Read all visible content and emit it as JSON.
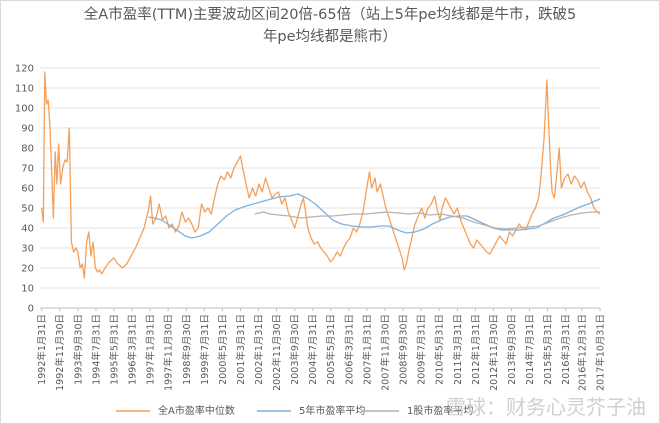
{
  "chart_data": {
    "type": "line",
    "title_line1": "全A市盈率(TTM)主要波动区间20倍-65倍（站上5年pe均线都是牛市，跌破5",
    "title_line2": "年pe均线都是熊市）",
    "ylim": [
      0,
      120
    ],
    "yticks": [
      0,
      10,
      20,
      30,
      40,
      50,
      60,
      70,
      80,
      90,
      100,
      110,
      120
    ],
    "xlim": [
      1992.0,
      2017.83
    ],
    "xticks": [
      {
        "label": "1992年1月31日",
        "x": 1992.08
      },
      {
        "label": "1992年11月30日",
        "x": 1992.91
      },
      {
        "label": "1993年9月30日",
        "x": 1993.75
      },
      {
        "label": "1994年7月31日",
        "x": 1994.58
      },
      {
        "label": "1995年5月31日",
        "x": 1995.41
      },
      {
        "label": "1996年3月31日",
        "x": 1996.25
      },
      {
        "label": "1997年1月31日",
        "x": 1997.08
      },
      {
        "label": "1997年11月30日",
        "x": 1997.91
      },
      {
        "label": "1998年9月30日",
        "x": 1998.75
      },
      {
        "label": "1999年7月31日",
        "x": 1999.58
      },
      {
        "label": "2000年5月31日",
        "x": 2000.41
      },
      {
        "label": "2001年3月31日",
        "x": 2001.25
      },
      {
        "label": "2002年1月31日",
        "x": 2002.08
      },
      {
        "label": "2002年11月30日",
        "x": 2002.91
      },
      {
        "label": "2003年9月30日",
        "x": 2003.75
      },
      {
        "label": "2004年7月31日",
        "x": 2004.58
      },
      {
        "label": "2005年5月31日",
        "x": 2005.41
      },
      {
        "label": "2006年3月31日",
        "x": 2006.25
      },
      {
        "label": "2007年1月31日",
        "x": 2007.08
      },
      {
        "label": "2007年11月30日",
        "x": 2007.91
      },
      {
        "label": "2008年9月30日",
        "x": 2008.75
      },
      {
        "label": "2009年7月31日",
        "x": 2009.58
      },
      {
        "label": "2010年5月31日",
        "x": 2010.41
      },
      {
        "label": "2011年3月31日",
        "x": 2011.25
      },
      {
        "label": "2012年1月31日",
        "x": 2012.08
      },
      {
        "label": "2012年11月30日",
        "x": 2012.91
      },
      {
        "label": "2013年9月30日",
        "x": 2013.75
      },
      {
        "label": "2014年7月31日",
        "x": 2014.58
      },
      {
        "label": "2015年5月31日",
        "x": 2015.41
      },
      {
        "label": "2016年3月31日",
        "x": 2016.25
      },
      {
        "label": "2016年12月31日",
        "x": 2016.99
      },
      {
        "label": "2017年10月31日",
        "x": 2017.83
      }
    ],
    "grid": true,
    "legend_position": "bottom",
    "series": [
      {
        "name": "全A市盈率中位数",
        "color": "#f4a05a",
        "points": [
          [
            1992.08,
            50
          ],
          [
            1992.15,
            43
          ],
          [
            1992.22,
            118
          ],
          [
            1992.3,
            102
          ],
          [
            1992.38,
            104
          ],
          [
            1992.46,
            90
          ],
          [
            1992.55,
            65
          ],
          [
            1992.62,
            45
          ],
          [
            1992.7,
            78
          ],
          [
            1992.78,
            62
          ],
          [
            1992.86,
            82
          ],
          [
            1992.95,
            62
          ],
          [
            1993.05,
            70
          ],
          [
            1993.15,
            74
          ],
          [
            1993.25,
            73
          ],
          [
            1993.35,
            90
          ],
          [
            1993.45,
            33
          ],
          [
            1993.55,
            28
          ],
          [
            1993.65,
            30
          ],
          [
            1993.75,
            28
          ],
          [
            1993.85,
            20
          ],
          [
            1993.95,
            22
          ],
          [
            1994.05,
            15
          ],
          [
            1994.15,
            33
          ],
          [
            1994.25,
            38
          ],
          [
            1994.35,
            26
          ],
          [
            1994.45,
            33
          ],
          [
            1994.55,
            20
          ],
          [
            1994.65,
            18
          ],
          [
            1994.75,
            19
          ],
          [
            1994.85,
            17
          ],
          [
            1995.0,
            20
          ],
          [
            1995.2,
            23
          ],
          [
            1995.4,
            25
          ],
          [
            1995.6,
            22
          ],
          [
            1995.8,
            20
          ],
          [
            1996.0,
            22
          ],
          [
            1996.2,
            26
          ],
          [
            1996.4,
            30
          ],
          [
            1996.6,
            35
          ],
          [
            1996.8,
            40
          ],
          [
            1997.0,
            49
          ],
          [
            1997.1,
            56
          ],
          [
            1997.2,
            42
          ],
          [
            1997.35,
            45
          ],
          [
            1997.5,
            52
          ],
          [
            1997.65,
            44
          ],
          [
            1997.8,
            46
          ],
          [
            1997.95,
            40
          ],
          [
            1998.1,
            42
          ],
          [
            1998.25,
            38
          ],
          [
            1998.4,
            41
          ],
          [
            1998.55,
            48
          ],
          [
            1998.7,
            43
          ],
          [
            1998.85,
            45
          ],
          [
            1999.0,
            42
          ],
          [
            1999.15,
            38
          ],
          [
            1999.3,
            40
          ],
          [
            1999.45,
            52
          ],
          [
            1999.6,
            48
          ],
          [
            1999.75,
            50
          ],
          [
            1999.9,
            47
          ],
          [
            2000.05,
            55
          ],
          [
            2000.2,
            62
          ],
          [
            2000.35,
            66
          ],
          [
            2000.5,
            64
          ],
          [
            2000.65,
            68
          ],
          [
            2000.8,
            65
          ],
          [
            2000.95,
            70
          ],
          [
            2001.1,
            73
          ],
          [
            2001.25,
            76
          ],
          [
            2001.35,
            70
          ],
          [
            2001.5,
            62
          ],
          [
            2001.65,
            55
          ],
          [
            2001.8,
            60
          ],
          [
            2001.95,
            56
          ],
          [
            2002.1,
            62
          ],
          [
            2002.25,
            58
          ],
          [
            2002.4,
            65
          ],
          [
            2002.55,
            60
          ],
          [
            2002.7,
            55
          ],
          [
            2002.85,
            57
          ],
          [
            2003.0,
            58
          ],
          [
            2003.15,
            52
          ],
          [
            2003.3,
            55
          ],
          [
            2003.45,
            48
          ],
          [
            2003.6,
            44
          ],
          [
            2003.75,
            40
          ],
          [
            2003.9,
            46
          ],
          [
            2004.05,
            52
          ],
          [
            2004.15,
            55
          ],
          [
            2004.25,
            48
          ],
          [
            2004.35,
            40
          ],
          [
            2004.5,
            35
          ],
          [
            2004.65,
            32
          ],
          [
            2004.8,
            33
          ],
          [
            2004.95,
            30
          ],
          [
            2005.1,
            28
          ],
          [
            2005.25,
            26
          ],
          [
            2005.4,
            23
          ],
          [
            2005.55,
            25
          ],
          [
            2005.7,
            28
          ],
          [
            2005.85,
            26
          ],
          [
            2006.0,
            30
          ],
          [
            2006.15,
            33
          ],
          [
            2006.3,
            35
          ],
          [
            2006.45,
            40
          ],
          [
            2006.6,
            38
          ],
          [
            2006.75,
            42
          ],
          [
            2006.9,
            48
          ],
          [
            2007.0,
            55
          ],
          [
            2007.1,
            62
          ],
          [
            2007.2,
            68
          ],
          [
            2007.3,
            60
          ],
          [
            2007.45,
            65
          ],
          [
            2007.55,
            58
          ],
          [
            2007.7,
            62
          ],
          [
            2007.85,
            55
          ],
          [
            2007.95,
            50
          ],
          [
            2008.1,
            45
          ],
          [
            2008.25,
            40
          ],
          [
            2008.4,
            35
          ],
          [
            2008.55,
            30
          ],
          [
            2008.7,
            25
          ],
          [
            2008.8,
            19
          ],
          [
            2008.9,
            22
          ],
          [
            2009.0,
            28
          ],
          [
            2009.15,
            35
          ],
          [
            2009.3,
            42
          ],
          [
            2009.45,
            46
          ],
          [
            2009.6,
            50
          ],
          [
            2009.75,
            45
          ],
          [
            2009.9,
            50
          ],
          [
            2010.05,
            52
          ],
          [
            2010.2,
            56
          ],
          [
            2010.35,
            48
          ],
          [
            2010.45,
            44
          ],
          [
            2010.55,
            50
          ],
          [
            2010.7,
            55
          ],
          [
            2010.85,
            52
          ],
          [
            2010.95,
            50
          ],
          [
            2011.1,
            47
          ],
          [
            2011.25,
            50
          ],
          [
            2011.4,
            44
          ],
          [
            2011.55,
            40
          ],
          [
            2011.7,
            36
          ],
          [
            2011.85,
            32
          ],
          [
            2012.0,
            30
          ],
          [
            2012.15,
            34
          ],
          [
            2012.3,
            32
          ],
          [
            2012.45,
            30
          ],
          [
            2012.6,
            28
          ],
          [
            2012.75,
            27
          ],
          [
            2012.9,
            30
          ],
          [
            2013.05,
            33
          ],
          [
            2013.2,
            36
          ],
          [
            2013.35,
            34
          ],
          [
            2013.5,
            32
          ],
          [
            2013.65,
            38
          ],
          [
            2013.8,
            36
          ],
          [
            2013.95,
            39
          ],
          [
            2014.1,
            42
          ],
          [
            2014.25,
            40
          ],
          [
            2014.4,
            39
          ],
          [
            2014.55,
            43
          ],
          [
            2014.7,
            47
          ],
          [
            2014.85,
            50
          ],
          [
            2015.0,
            55
          ],
          [
            2015.1,
            65
          ],
          [
            2015.25,
            85
          ],
          [
            2015.38,
            114
          ],
          [
            2015.45,
            95
          ],
          [
            2015.55,
            70
          ],
          [
            2015.62,
            58
          ],
          [
            2015.72,
            55
          ],
          [
            2015.82,
            65
          ],
          [
            2015.95,
            80
          ],
          [
            2016.05,
            60
          ],
          [
            2016.2,
            65
          ],
          [
            2016.35,
            67
          ],
          [
            2016.5,
            62
          ],
          [
            2016.65,
            66
          ],
          [
            2016.8,
            64
          ],
          [
            2016.95,
            60
          ],
          [
            2017.1,
            63
          ],
          [
            2017.25,
            58
          ],
          [
            2017.4,
            55
          ],
          [
            2017.55,
            50
          ],
          [
            2017.7,
            48
          ],
          [
            2017.83,
            47
          ]
        ]
      },
      {
        "name": "5年市盈率平均",
        "color": "#7fb2de",
        "points": [
          [
            1997.0,
            45.5
          ],
          [
            1997.3,
            45
          ],
          [
            1997.6,
            44
          ],
          [
            1997.9,
            42
          ],
          [
            1998.3,
            39
          ],
          [
            1998.7,
            36
          ],
          [
            1999.0,
            35
          ],
          [
            1999.4,
            36
          ],
          [
            1999.8,
            38
          ],
          [
            2000.2,
            42
          ],
          [
            2000.6,
            46
          ],
          [
            2001.0,
            49
          ],
          [
            2001.5,
            51
          ],
          [
            2002.0,
            52.5
          ],
          [
            2002.5,
            54
          ],
          [
            2003.0,
            55.5
          ],
          [
            2003.5,
            56
          ],
          [
            2003.9,
            57
          ],
          [
            2004.3,
            55
          ],
          [
            2004.7,
            52
          ],
          [
            2005.1,
            48
          ],
          [
            2005.5,
            44
          ],
          [
            2005.9,
            42
          ],
          [
            2006.4,
            41
          ],
          [
            2006.9,
            40.5
          ],
          [
            2007.3,
            40.5
          ],
          [
            2007.7,
            41
          ],
          [
            2008.1,
            41
          ],
          [
            2008.5,
            39
          ],
          [
            2008.9,
            37.5
          ],
          [
            2009.3,
            38
          ],
          [
            2009.7,
            39.5
          ],
          [
            2010.1,
            42
          ],
          [
            2010.5,
            44
          ],
          [
            2010.9,
            45.5
          ],
          [
            2011.3,
            46
          ],
          [
            2011.7,
            46
          ],
          [
            2012.1,
            44
          ],
          [
            2012.5,
            42
          ],
          [
            2012.9,
            40
          ],
          [
            2013.3,
            39
          ],
          [
            2013.7,
            39
          ],
          [
            2014.1,
            39
          ],
          [
            2014.5,
            39.5
          ],
          [
            2014.9,
            40
          ],
          [
            2015.3,
            42.5
          ],
          [
            2015.7,
            45
          ],
          [
            2016.1,
            46.5
          ],
          [
            2016.5,
            48.5
          ],
          [
            2016.9,
            50.5
          ],
          [
            2017.3,
            52
          ],
          [
            2017.6,
            53.5
          ],
          [
            2017.83,
            54.5
          ]
        ]
      },
      {
        "name": "",
        "color": "#b4b4b4",
        "points": [
          [
            2001.9,
            47
          ],
          [
            2002.3,
            48
          ],
          [
            2002.6,
            47
          ],
          [
            2003.0,
            46.5
          ],
          [
            2003.5,
            46
          ],
          [
            2004.0,
            45
          ],
          [
            2004.5,
            45.5
          ],
          [
            2005.0,
            46
          ],
          [
            2005.5,
            46
          ],
          [
            2006.0,
            46.5
          ],
          [
            2006.5,
            47
          ],
          [
            2007.0,
            47
          ],
          [
            2007.5,
            47.5
          ],
          [
            2008.0,
            48
          ],
          [
            2008.5,
            47.5
          ],
          [
            2009.0,
            47
          ],
          [
            2009.5,
            47.5
          ],
          [
            2010.0,
            46.5
          ],
          [
            2010.5,
            47
          ],
          [
            2011.0,
            46
          ],
          [
            2011.5,
            45
          ],
          [
            2012.0,
            43
          ],
          [
            2012.5,
            41.5
          ],
          [
            2013.0,
            40
          ],
          [
            2013.5,
            39.5
          ],
          [
            2014.0,
            40
          ],
          [
            2014.5,
            40.5
          ],
          [
            2015.0,
            41
          ],
          [
            2015.5,
            43
          ],
          [
            2016.0,
            45
          ],
          [
            2016.5,
            46.5
          ],
          [
            2017.0,
            47.5
          ],
          [
            2017.5,
            48
          ],
          [
            2017.83,
            48
          ]
        ]
      }
    ]
  },
  "legend_third_label": "1股市盈率平均",
  "watermark": "雪球：财务心灵芥子油"
}
